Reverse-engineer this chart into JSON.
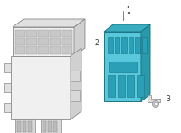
{
  "background_color": "#ffffff",
  "fig_width": 2.0,
  "fig_height": 1.47,
  "dpi": 100,
  "part1_color": "#5ac8dc",
  "part1_top_color": "#3aacbf",
  "part1_side_color": "#2a9aaa",
  "part1_edge": "#1a7585",
  "part1_slot_fill": "#2a9fb5",
  "part1_slot_edge": "#1a7585",
  "part2_face": "#f0f0f0",
  "part2_top": "#e0e0e0",
  "part2_side": "#d0d0d0",
  "part2_edge": "#888888",
  "part2_hatch": "#cccccc",
  "part3_fill": "#dddddd",
  "part3_edge": "#888888",
  "label_fontsize": 5.5,
  "label_color": "#333333"
}
